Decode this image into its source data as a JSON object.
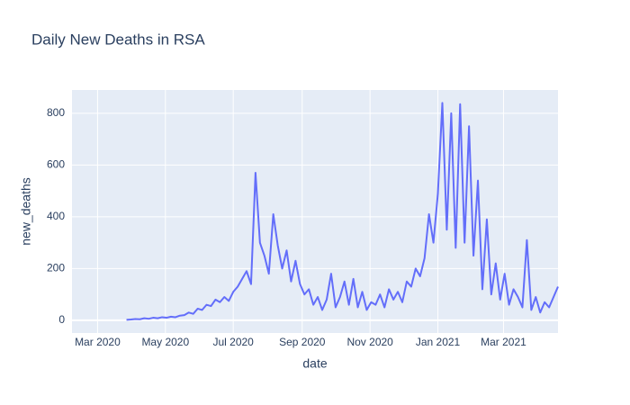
{
  "chart_data": {
    "type": "line",
    "title": "Daily New Deaths in RSA",
    "x_label": "date",
    "y_label": "new_deaths",
    "color": "#636efa",
    "grid": true,
    "x": [
      "2020-03-27",
      "2020-03-31",
      "2020-04-04",
      "2020-04-08",
      "2020-04-12",
      "2020-04-16",
      "2020-04-20",
      "2020-04-24",
      "2020-04-28",
      "2020-05-02",
      "2020-05-06",
      "2020-05-10",
      "2020-05-14",
      "2020-05-18",
      "2020-05-22",
      "2020-05-26",
      "2020-05-30",
      "2020-06-03",
      "2020-06-07",
      "2020-06-11",
      "2020-06-15",
      "2020-06-19",
      "2020-06-23",
      "2020-06-27",
      "2020-07-01",
      "2020-07-05",
      "2020-07-09",
      "2020-07-13",
      "2020-07-17",
      "2020-07-21",
      "2020-07-25",
      "2020-07-29",
      "2020-08-02",
      "2020-08-06",
      "2020-08-10",
      "2020-08-14",
      "2020-08-18",
      "2020-08-22",
      "2020-08-26",
      "2020-08-30",
      "2020-09-03",
      "2020-09-07",
      "2020-09-11",
      "2020-09-15",
      "2020-09-19",
      "2020-09-23",
      "2020-09-27",
      "2020-10-01",
      "2020-10-05",
      "2020-10-09",
      "2020-10-13",
      "2020-10-17",
      "2020-10-21",
      "2020-10-25",
      "2020-10-29",
      "2020-11-02",
      "2020-11-06",
      "2020-11-10",
      "2020-11-14",
      "2020-11-18",
      "2020-11-22",
      "2020-11-26",
      "2020-11-30",
      "2020-12-04",
      "2020-12-08",
      "2020-12-12",
      "2020-12-16",
      "2020-12-20",
      "2020-12-24",
      "2020-12-28",
      "2021-01-01",
      "2021-01-05",
      "2021-01-09",
      "2021-01-13",
      "2021-01-17",
      "2021-01-21",
      "2021-01-25",
      "2021-01-29",
      "2021-02-02",
      "2021-02-06",
      "2021-02-10",
      "2021-02-14",
      "2021-02-18",
      "2021-02-22",
      "2021-02-26",
      "2021-03-02",
      "2021-03-06",
      "2021-03-10",
      "2021-03-14",
      "2021-03-18",
      "2021-03-22",
      "2021-03-26",
      "2021-03-30",
      "2021-04-03",
      "2021-04-07",
      "2021-04-11",
      "2021-04-15",
      "2021-04-19"
    ],
    "values": [
      2,
      3,
      5,
      4,
      8,
      6,
      10,
      8,
      12,
      10,
      14,
      12,
      18,
      20,
      30,
      25,
      45,
      40,
      60,
      55,
      80,
      70,
      90,
      75,
      110,
      130,
      160,
      190,
      140,
      570,
      300,
      250,
      180,
      410,
      290,
      200,
      270,
      150,
      230,
      140,
      100,
      120,
      60,
      90,
      40,
      80,
      180,
      50,
      90,
      150,
      60,
      160,
      50,
      110,
      40,
      70,
      60,
      100,
      50,
      120,
      80,
      110,
      70,
      150,
      130,
      200,
      170,
      240,
      410,
      300,
      490,
      840,
      350,
      800,
      280,
      835,
      300,
      750,
      250,
      540,
      120,
      390,
      100,
      220,
      80,
      180,
      60,
      120,
      90,
      50,
      310,
      40,
      90,
      30,
      70,
      50,
      90,
      130
    ],
    "xlim": [
      "2020-02-07",
      "2021-04-19"
    ],
    "xticks": [
      {
        "value": "2020-03-01",
        "label": "Mar 2020"
      },
      {
        "value": "2020-05-01",
        "label": "May 2020"
      },
      {
        "value": "2020-07-01",
        "label": "Jul 2020"
      },
      {
        "value": "2020-09-01",
        "label": "Sep 2020"
      },
      {
        "value": "2020-11-01",
        "label": "Nov 2020"
      },
      {
        "value": "2021-01-01",
        "label": "Jan 2021"
      },
      {
        "value": "2021-03-01",
        "label": "Mar 2021"
      }
    ],
    "ylim": [
      -49,
      890
    ],
    "yticks": [
      0,
      200,
      400,
      600,
      800
    ]
  }
}
